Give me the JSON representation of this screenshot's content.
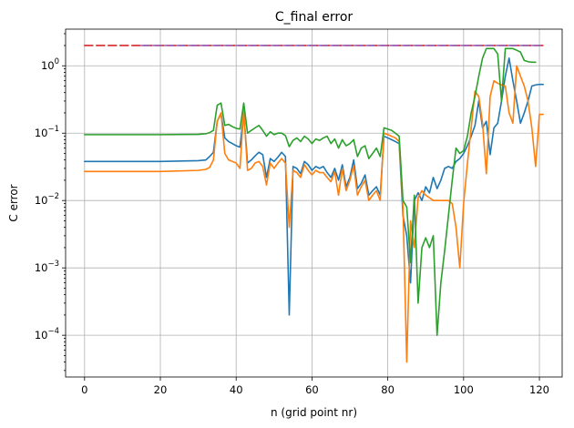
{
  "chart_data": {
    "type": "line",
    "title": "C_final error",
    "xlabel": "n (grid point nr)",
    "ylabel": "C error",
    "xlim": [
      -5,
      126
    ],
    "ylim": [
      2.4e-05,
      3.5
    ],
    "yscale": "log",
    "grid": true,
    "xticks": [
      0,
      20,
      40,
      60,
      80,
      100,
      120
    ],
    "xtick_labels": [
      "0",
      "20",
      "40",
      "60",
      "80",
      "100",
      "120"
    ],
    "yticks": [
      0.0001,
      0.001,
      0.01,
      0.1,
      1
    ],
    "ytick_labels": [
      {
        "base": "10",
        "exp": "−4"
      },
      {
        "base": "10",
        "exp": "−3"
      },
      {
        "base": "10",
        "exp": "−2"
      },
      {
        "base": "10",
        "exp": "−1"
      },
      {
        "base": "10",
        "exp": "0"
      }
    ],
    "series": [
      {
        "color": "#1f77b4",
        "style": "solid",
        "points": [
          [
            0,
            0.038
          ],
          [
            10,
            0.038
          ],
          [
            20,
            0.038
          ],
          [
            30,
            0.039
          ],
          [
            32,
            0.04
          ],
          [
            33,
            0.045
          ],
          [
            34,
            0.052
          ],
          [
            35,
            0.15
          ],
          [
            36,
            0.195
          ],
          [
            37,
            0.085
          ],
          [
            38,
            0.075
          ],
          [
            39,
            0.07
          ],
          [
            40,
            0.065
          ],
          [
            41,
            0.062
          ],
          [
            42,
            0.2
          ],
          [
            43,
            0.036
          ],
          [
            44,
            0.04
          ],
          [
            45,
            0.046
          ],
          [
            46,
            0.052
          ],
          [
            47,
            0.048
          ],
          [
            48,
            0.022
          ],
          [
            49,
            0.042
          ],
          [
            50,
            0.038
          ],
          [
            51,
            0.044
          ],
          [
            52,
            0.052
          ],
          [
            53,
            0.045
          ],
          [
            54,
            0.0002
          ],
          [
            55,
            0.032
          ],
          [
            56,
            0.03
          ],
          [
            57,
            0.025
          ],
          [
            58,
            0.038
          ],
          [
            59,
            0.034
          ],
          [
            60,
            0.028
          ],
          [
            61,
            0.032
          ],
          [
            62,
            0.03
          ],
          [
            63,
            0.032
          ],
          [
            64,
            0.026
          ],
          [
            65,
            0.022
          ],
          [
            66,
            0.03
          ],
          [
            67,
            0.02
          ],
          [
            68,
            0.034
          ],
          [
            69,
            0.016
          ],
          [
            70,
            0.022
          ],
          [
            71,
            0.04
          ],
          [
            72,
            0.015
          ],
          [
            73,
            0.018
          ],
          [
            74,
            0.024
          ],
          [
            75,
            0.012
          ],
          [
            76,
            0.014
          ],
          [
            77,
            0.016
          ],
          [
            78,
            0.012
          ],
          [
            79,
            0.09
          ],
          [
            80,
            0.085
          ],
          [
            81,
            0.08
          ],
          [
            82,
            0.075
          ],
          [
            83,
            0.07
          ],
          [
            84,
            0.006
          ],
          [
            85,
            0.003
          ],
          [
            86,
            0.0006
          ],
          [
            87,
            0.01
          ],
          [
            88,
            0.013
          ],
          [
            89,
            0.01
          ],
          [
            90,
            0.016
          ],
          [
            91,
            0.013
          ],
          [
            92,
            0.022
          ],
          [
            93,
            0.015
          ],
          [
            94,
            0.02
          ],
          [
            95,
            0.03
          ],
          [
            96,
            0.032
          ],
          [
            97,
            0.03
          ],
          [
            98,
            0.038
          ],
          [
            99,
            0.042
          ],
          [
            100,
            0.05
          ],
          [
            101,
            0.065
          ],
          [
            102,
            0.09
          ],
          [
            103,
            0.13
          ],
          [
            104,
            0.3
          ],
          [
            105,
            0.12
          ],
          [
            106,
            0.15
          ],
          [
            107,
            0.048
          ],
          [
            108,
            0.12
          ],
          [
            109,
            0.14
          ],
          [
            110,
            0.3
          ],
          [
            111,
            0.7
          ],
          [
            112,
            1.3
          ],
          [
            113,
            0.6
          ],
          [
            114,
            0.3
          ],
          [
            115,
            0.14
          ],
          [
            116,
            0.2
          ],
          [
            117,
            0.3
          ],
          [
            118,
            0.5
          ],
          [
            119,
            0.52
          ],
          [
            120,
            0.53
          ],
          [
            121,
            0.53
          ]
        ]
      },
      {
        "color": "#ff7f0e",
        "style": "solid",
        "points": [
          [
            0,
            0.027
          ],
          [
            10,
            0.027
          ],
          [
            20,
            0.027
          ],
          [
            30,
            0.028
          ],
          [
            32,
            0.029
          ],
          [
            33,
            0.031
          ],
          [
            34,
            0.04
          ],
          [
            35,
            0.15
          ],
          [
            36,
            0.2
          ],
          [
            37,
            0.05
          ],
          [
            38,
            0.04
          ],
          [
            39,
            0.038
          ],
          [
            40,
            0.036
          ],
          [
            41,
            0.03
          ],
          [
            42,
            0.22
          ],
          [
            43,
            0.028
          ],
          [
            44,
            0.03
          ],
          [
            45,
            0.036
          ],
          [
            46,
            0.038
          ],
          [
            47,
            0.032
          ],
          [
            48,
            0.017
          ],
          [
            49,
            0.036
          ],
          [
            50,
            0.03
          ],
          [
            51,
            0.036
          ],
          [
            52,
            0.042
          ],
          [
            53,
            0.036
          ],
          [
            54,
            0.004
          ],
          [
            55,
            0.028
          ],
          [
            56,
            0.026
          ],
          [
            57,
            0.022
          ],
          [
            58,
            0.034
          ],
          [
            59,
            0.028
          ],
          [
            60,
            0.024
          ],
          [
            61,
            0.028
          ],
          [
            62,
            0.026
          ],
          [
            63,
            0.026
          ],
          [
            64,
            0.022
          ],
          [
            65,
            0.019
          ],
          [
            66,
            0.027
          ],
          [
            67,
            0.012
          ],
          [
            68,
            0.03
          ],
          [
            69,
            0.014
          ],
          [
            70,
            0.02
          ],
          [
            71,
            0.033
          ],
          [
            72,
            0.012
          ],
          [
            73,
            0.016
          ],
          [
            74,
            0.02
          ],
          [
            75,
            0.01
          ],
          [
            76,
            0.012
          ],
          [
            77,
            0.014
          ],
          [
            78,
            0.01
          ],
          [
            79,
            0.1
          ],
          [
            80,
            0.095
          ],
          [
            81,
            0.09
          ],
          [
            82,
            0.085
          ],
          [
            83,
            0.075
          ],
          [
            84,
            0.008
          ],
          [
            85,
            4e-05
          ],
          [
            86,
            0.005
          ],
          [
            87,
            0.002
          ],
          [
            88,
            0.011
          ],
          [
            89,
            0.014
          ],
          [
            90,
            0.012
          ],
          [
            91,
            0.011
          ],
          [
            92,
            0.01
          ],
          [
            93,
            0.01
          ],
          [
            94,
            0.01
          ],
          [
            95,
            0.01
          ],
          [
            96,
            0.01
          ],
          [
            97,
            0.009
          ],
          [
            98,
            0.004
          ],
          [
            99,
            0.001
          ],
          [
            100,
            0.009
          ],
          [
            101,
            0.035
          ],
          [
            102,
            0.12
          ],
          [
            103,
            0.42
          ],
          [
            104,
            0.35
          ],
          [
            105,
            0.14
          ],
          [
            106,
            0.025
          ],
          [
            107,
            0.35
          ],
          [
            108,
            0.6
          ],
          [
            109,
            0.55
          ],
          [
            110,
            0.52
          ],
          [
            111,
            0.5
          ],
          [
            112,
            0.2
          ],
          [
            113,
            0.14
          ],
          [
            114,
            1.0
          ],
          [
            115,
            0.7
          ],
          [
            116,
            0.5
          ],
          [
            117,
            0.3
          ],
          [
            118,
            0.12
          ],
          [
            119,
            0.032
          ],
          [
            120,
            0.19
          ],
          [
            121,
            0.19
          ]
        ]
      },
      {
        "color": "#2ca02c",
        "style": "solid",
        "points": [
          [
            0,
            0.095
          ],
          [
            10,
            0.095
          ],
          [
            20,
            0.095
          ],
          [
            30,
            0.096
          ],
          [
            32,
            0.098
          ],
          [
            33,
            0.102
          ],
          [
            34,
            0.11
          ],
          [
            35,
            0.26
          ],
          [
            36,
            0.28
          ],
          [
            37,
            0.13
          ],
          [
            38,
            0.135
          ],
          [
            39,
            0.125
          ],
          [
            40,
            0.118
          ],
          [
            41,
            0.115
          ],
          [
            42,
            0.28
          ],
          [
            43,
            0.1
          ],
          [
            44,
            0.11
          ],
          [
            45,
            0.12
          ],
          [
            46,
            0.13
          ],
          [
            47,
            0.11
          ],
          [
            48,
            0.09
          ],
          [
            49,
            0.105
          ],
          [
            50,
            0.095
          ],
          [
            51,
            0.1
          ],
          [
            52,
            0.1
          ],
          [
            53,
            0.092
          ],
          [
            54,
            0.063
          ],
          [
            55,
            0.078
          ],
          [
            56,
            0.085
          ],
          [
            57,
            0.075
          ],
          [
            58,
            0.09
          ],
          [
            59,
            0.082
          ],
          [
            60,
            0.07
          ],
          [
            61,
            0.082
          ],
          [
            62,
            0.078
          ],
          [
            63,
            0.085
          ],
          [
            64,
            0.09
          ],
          [
            65,
            0.07
          ],
          [
            66,
            0.082
          ],
          [
            67,
            0.06
          ],
          [
            68,
            0.08
          ],
          [
            69,
            0.065
          ],
          [
            70,
            0.07
          ],
          [
            71,
            0.08
          ],
          [
            72,
            0.045
          ],
          [
            73,
            0.06
          ],
          [
            74,
            0.065
          ],
          [
            75,
            0.042
          ],
          [
            76,
            0.05
          ],
          [
            77,
            0.06
          ],
          [
            78,
            0.045
          ],
          [
            79,
            0.12
          ],
          [
            80,
            0.115
          ],
          [
            81,
            0.11
          ],
          [
            82,
            0.1
          ],
          [
            83,
            0.09
          ],
          [
            84,
            0.01
          ],
          [
            85,
            0.008
          ],
          [
            86,
            0.0012
          ],
          [
            87,
            0.012
          ],
          [
            88,
            0.0003
          ],
          [
            89,
            0.002
          ],
          [
            90,
            0.0028
          ],
          [
            91,
            0.002
          ],
          [
            92,
            0.003
          ],
          [
            93,
            0.0001
          ],
          [
            94,
            0.0006
          ],
          [
            95,
            0.0018
          ],
          [
            96,
            0.006
          ],
          [
            97,
            0.02
          ],
          [
            98,
            0.06
          ],
          [
            99,
            0.05
          ],
          [
            100,
            0.055
          ],
          [
            101,
            0.09
          ],
          [
            102,
            0.2
          ],
          [
            103,
            0.35
          ],
          [
            104,
            0.7
          ],
          [
            105,
            1.3
          ],
          [
            106,
            1.8
          ],
          [
            107,
            1.8
          ],
          [
            108,
            1.8
          ],
          [
            109,
            1.5
          ],
          [
            110,
            0.3
          ],
          [
            111,
            1.8
          ],
          [
            112,
            1.8
          ],
          [
            113,
            1.8
          ],
          [
            114,
            1.7
          ],
          [
            115,
            1.6
          ],
          [
            116,
            1.2
          ],
          [
            117,
            1.15
          ],
          [
            118,
            1.13
          ],
          [
            119,
            1.13
          ]
        ]
      },
      {
        "color": "#d62728",
        "style": "dashed",
        "points": [
          [
            0,
            2.0
          ],
          [
            121,
            2.0
          ]
        ]
      },
      {
        "color": "#9467bd",
        "style": "dashed",
        "points": [
          [
            15,
            2.0
          ],
          [
            121,
            2.0
          ]
        ]
      }
    ]
  }
}
